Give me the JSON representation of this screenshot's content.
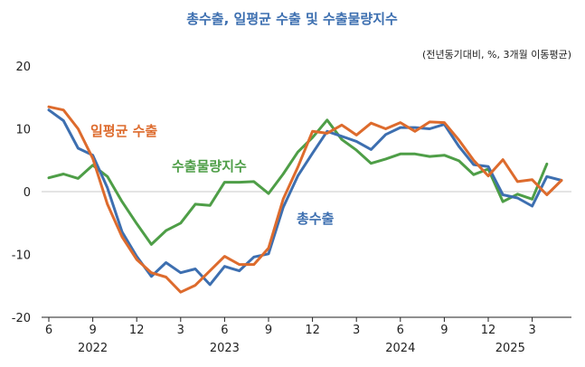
{
  "chart_data": {
    "type": "line",
    "title": "총수출, 일평균 수출 및 수출물량지수",
    "unit_note": "(전년동기대비, %, 3개월 이동평균)",
    "ylim": [
      -20,
      20
    ],
    "yticks": [
      "20",
      "10",
      "0",
      "-10",
      "-20"
    ],
    "xticks": [
      {
        "label": "6",
        "index": 0
      },
      {
        "label": "9",
        "index": 3
      },
      {
        "label": "12",
        "index": 6
      },
      {
        "label": "3",
        "index": 9
      },
      {
        "label": "6",
        "index": 12
      },
      {
        "label": "9",
        "index": 15
      },
      {
        "label": "12",
        "index": 18
      },
      {
        "label": "3",
        "index": 21
      },
      {
        "label": "6",
        "index": 24
      },
      {
        "label": "9",
        "index": 27
      },
      {
        "label": "12",
        "index": 30
      },
      {
        "label": "3",
        "index": 33
      }
    ],
    "years": [
      {
        "label": "2022",
        "index": 3
      },
      {
        "label": "2023",
        "index": 12
      },
      {
        "label": "2024",
        "index": 24
      },
      {
        "label": "2025",
        "index": 31.5
      }
    ],
    "x": [
      "2022-06",
      "2022-07",
      "2022-08",
      "2022-09",
      "2022-10",
      "2022-11",
      "2022-12",
      "2023-01",
      "2023-02",
      "2023-03",
      "2023-04",
      "2023-05",
      "2023-06",
      "2023-07",
      "2023-08",
      "2023-09",
      "2023-10",
      "2023-11",
      "2023-12",
      "2024-01",
      "2024-02",
      "2024-03",
      "2024-04",
      "2024-05",
      "2024-06",
      "2024-07",
      "2024-08",
      "2024-09",
      "2024-10",
      "2024-11",
      "2024-12",
      "2025-01",
      "2025-02",
      "2025-03",
      "2025-04",
      "2025-05"
    ],
    "series": [
      {
        "name": "총수출",
        "color": "#3d6fb0",
        "values": [
          13.0,
          11.3,
          6.9,
          5.8,
          0.6,
          -6.4,
          -10.3,
          -13.5,
          -11.3,
          -12.9,
          -12.3,
          -14.8,
          -11.9,
          -12.6,
          -10.4,
          -9.9,
          -2.5,
          2.5,
          6.1,
          9.6,
          8.8,
          8.0,
          6.7,
          9.1,
          10.2,
          10.2,
          10.0,
          10.7,
          7.2,
          4.3,
          4.0,
          -0.5,
          -1.0,
          -2.3,
          2.4,
          1.8
        ]
      },
      {
        "name": "일평균 수출",
        "color": "#dd6b2d",
        "values": [
          13.5,
          13.0,
          10.0,
          5.3,
          -2.0,
          -7.2,
          -10.8,
          -12.9,
          -13.6,
          -16.0,
          -14.9,
          -12.6,
          -10.3,
          -11.6,
          -11.6,
          -9.0,
          -1.2,
          3.9,
          9.6,
          9.3,
          10.6,
          9.0,
          10.9,
          10.0,
          11.0,
          9.6,
          11.1,
          11.0,
          8.2,
          5.0,
          2.5,
          5.1,
          1.6,
          1.9,
          -0.5,
          1.8
        ]
      },
      {
        "name": "수출물량지수",
        "color": "#4e9e47",
        "values": [
          2.2,
          2.8,
          2.1,
          4.2,
          2.4,
          -1.6,
          -5.1,
          -8.4,
          -6.2,
          -5.0,
          -2.0,
          -2.2,
          1.5,
          1.5,
          1.6,
          -0.3,
          2.8,
          6.3,
          8.6,
          11.4,
          8.3,
          6.6,
          4.5,
          5.2,
          6.0,
          6.0,
          5.6,
          5.8,
          4.9,
          2.7,
          3.6,
          -1.6,
          -0.4,
          -1.2,
          4.4,
          null
        ]
      }
    ],
    "annotations": [
      "일평균 수출",
      "수출물량지수",
      "총수출"
    ]
  }
}
